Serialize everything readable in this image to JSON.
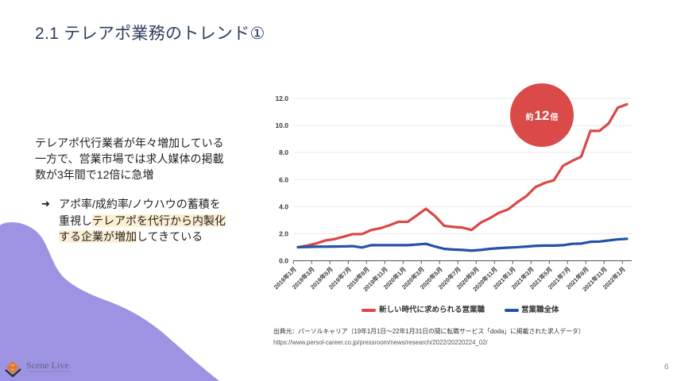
{
  "slide": {
    "title": "2.1 テレアポ業務のトレンド①",
    "page_number": "6"
  },
  "body": {
    "paragraph_lines": [
      "テレアポ代行業者が年々増加している",
      "一方で、営業市場では求人媒体の掲載",
      "数が3年間で12倍に急増"
    ],
    "bullet": {
      "icon": "arrow-right-icon",
      "glyph": "➔",
      "line1": "アポ率/成約率/ノウハウの蓄積を",
      "line2_plain": "重視し",
      "line2_highlight": "テレアポを代行から内製化",
      "line3_highlight": "する企業が増加",
      "line3_plain": "してきている"
    }
  },
  "colors": {
    "title": "#2b3f5e",
    "highlight": "#fdf0d2",
    "blob": "#9c94e3",
    "series_red": "#dc4646",
    "series_blue": "#2352a8",
    "annotation_circle": "#d94a48"
  },
  "chart_data": {
    "type": "line",
    "title": "",
    "xlabel": "",
    "ylabel": "",
    "ylim": [
      0,
      12
    ],
    "yticks": [
      0,
      2,
      4,
      6,
      8,
      10,
      12
    ],
    "grid": true,
    "legend": "bottom",
    "x": [
      "2019年1月",
      "2019年2月",
      "2019年3月",
      "2019年4月",
      "2019年5月",
      "2019年6月",
      "2019年7月",
      "2019年8月",
      "2019年9月",
      "2019年10月",
      "2019年11月",
      "2019年12月",
      "2020年1月",
      "2020年2月",
      "2020年3月",
      "2020年4月",
      "2020年5月",
      "2020年6月",
      "2020年7月",
      "2020年8月",
      "2020年9月",
      "2020年10月",
      "2020年11月",
      "2020年12月",
      "2021年1月",
      "2021年2月",
      "2021年3月",
      "2021年4月",
      "2021年5月",
      "2021年6月",
      "2021年7月",
      "2021年8月",
      "2021年9月",
      "2021年10月",
      "2021年11月",
      "2021年12月",
      "2022年1月"
    ],
    "xtick_labels": [
      "2019年1月",
      "2019年3月",
      "2019年5月",
      "2019年7月",
      "2019年9月",
      "2019年11月",
      "2020年1月",
      "2020年3月",
      "2020年5月",
      "2020年7月",
      "2020年9月",
      "2020年11月",
      "2021年1月",
      "2021年3月",
      "2021年5月",
      "2021年7月",
      "2021年9月",
      "2021年11月",
      "2022年1月"
    ],
    "series": [
      {
        "name": "新しい時代に求められる営業職",
        "color": "#dc4646",
        "values": [
          1.0,
          1.12,
          1.28,
          1.5,
          1.6,
          1.78,
          1.97,
          1.97,
          2.27,
          2.4,
          2.62,
          2.88,
          2.88,
          3.35,
          3.84,
          3.3,
          2.58,
          2.5,
          2.45,
          2.28,
          2.82,
          3.15,
          3.55,
          3.8,
          4.32,
          4.78,
          5.45,
          5.75,
          5.95,
          7.02,
          7.38,
          7.7,
          9.6,
          9.6,
          10.15,
          11.32,
          11.57
        ]
      },
      {
        "name": "営業職全体",
        "color": "#2352a8",
        "values": [
          1.0,
          1.02,
          1.04,
          1.04,
          1.05,
          1.06,
          1.08,
          0.98,
          1.15,
          1.15,
          1.15,
          1.15,
          1.15,
          1.2,
          1.25,
          1.05,
          0.88,
          0.83,
          0.8,
          0.75,
          0.8,
          0.88,
          0.93,
          0.97,
          1.0,
          1.05,
          1.1,
          1.12,
          1.12,
          1.15,
          1.25,
          1.27,
          1.4,
          1.42,
          1.5,
          1.58,
          1.62
        ]
      }
    ],
    "annotation": {
      "prefix": "約",
      "value": "12",
      "suffix": "倍",
      "color": "#d94a48"
    }
  },
  "source": {
    "citation": "出典元：パーソルキャリア（19年1月1日〜22年1月31日の間に転職サービス「doda」に掲載された求人データ）",
    "url": "https://www.persol-career.co.jp/pressroom/news/research/2022/20220224_02/"
  },
  "logo": {
    "name": "Scene Live"
  }
}
